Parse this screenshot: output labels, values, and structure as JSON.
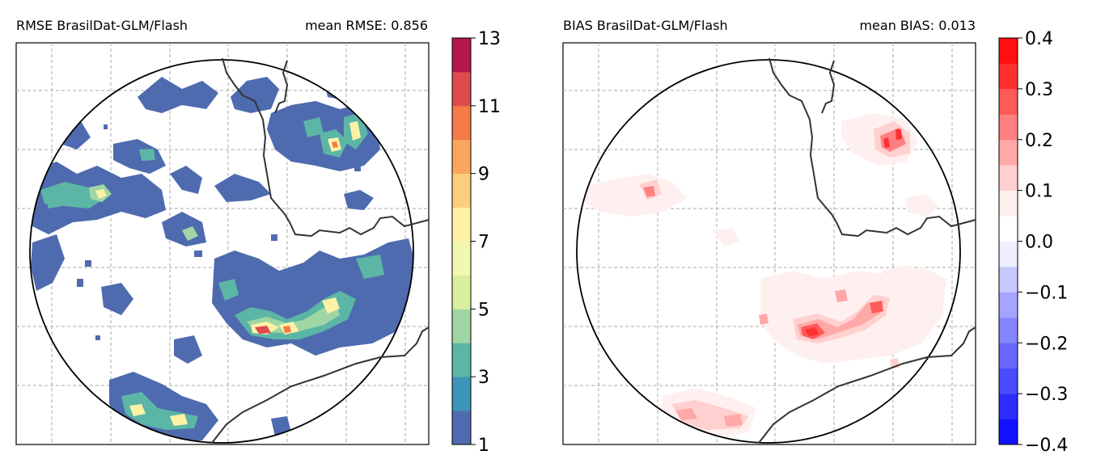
{
  "chart_data": [
    {
      "type": "heatmap",
      "title_left": "RMSE BrasilDat-GLM/Flash",
      "title_right": "mean RMSE: 0.856",
      "colorbar": {
        "ticks": [
          1,
          3,
          5,
          7,
          9,
          11,
          13
        ],
        "tick_labels": [
          "1",
          "3",
          "5",
          "7",
          "9",
          "11",
          "13"
        ],
        "range": [
          1,
          13
        ],
        "levels": [
          {
            "from": 1,
            "to": 2,
            "color": "#4f6baf"
          },
          {
            "from": 2,
            "to": 3,
            "color": "#3d93b8"
          },
          {
            "from": 3,
            "to": 4,
            "color": "#5cb6a6"
          },
          {
            "from": 4,
            "to": 5,
            "color": "#a0d6a4"
          },
          {
            "from": 5,
            "to": 6,
            "color": "#d9ef9b"
          },
          {
            "from": 6,
            "to": 7,
            "color": "#f2f8b1"
          },
          {
            "from": 7,
            "to": 8,
            "color": "#fff2a6"
          },
          {
            "from": 8,
            "to": 9,
            "color": "#fdce7c"
          },
          {
            "from": 9,
            "to": 10,
            "color": "#fba65e"
          },
          {
            "from": 10,
            "to": 11,
            "color": "#f47a48"
          },
          {
            "from": 11,
            "to": 12,
            "color": "#dd4b4c"
          },
          {
            "from": 12,
            "to": 13,
            "color": "#b5174b"
          }
        ]
      },
      "grid": true,
      "hotspots": [
        {
          "lon": 0.4,
          "lat": 0.52,
          "value": 12
        },
        {
          "lon": 0.86,
          "lat": 0.13,
          "value": 11
        },
        {
          "lon": 0.78,
          "lat": 0.25,
          "value": 8
        },
        {
          "lon": 0.82,
          "lat": 0.62,
          "value": 8
        },
        {
          "lon": 0.46,
          "lat": 0.15,
          "value": 7
        },
        {
          "lon": 0.42,
          "lat": 0.45,
          "value": 7
        },
        {
          "lon": 0.15,
          "lat": 0.9,
          "value": 6
        }
      ]
    },
    {
      "type": "heatmap",
      "title_left": "BIAS BrasilDat-GLM/Flash",
      "title_right": "mean BIAS: 0.013",
      "colorbar": {
        "ticks": [
          -0.4,
          -0.3,
          -0.2,
          -0.1,
          0.0,
          0.1,
          0.2,
          0.3,
          0.4
        ],
        "tick_labels": [
          "−0.4",
          "−0.3",
          "−0.2",
          "−0.1",
          "0.0",
          "0.1",
          "0.2",
          "0.3",
          "0.4"
        ],
        "range": [
          -0.4,
          0.4
        ],
        "levels": [
          {
            "from": -0.4,
            "to": -0.35,
            "color": "#1212ff"
          },
          {
            "from": -0.35,
            "to": -0.3,
            "color": "#2d2dff"
          },
          {
            "from": -0.3,
            "to": -0.25,
            "color": "#4a4aff"
          },
          {
            "from": -0.25,
            "to": -0.2,
            "color": "#6767ff"
          },
          {
            "from": -0.2,
            "to": -0.15,
            "color": "#8585ff"
          },
          {
            "from": -0.15,
            "to": -0.1,
            "color": "#a4a4ff"
          },
          {
            "from": -0.1,
            "to": -0.05,
            "color": "#c8c8ff"
          },
          {
            "from": -0.05,
            "to": 0.0,
            "color": "#eeeeff"
          },
          {
            "from": 0.0,
            "to": 0.05,
            "color": "#ffffff"
          },
          {
            "from": 0.05,
            "to": 0.1,
            "color": "#fff0f0"
          },
          {
            "from": 0.1,
            "to": 0.15,
            "color": "#ffd0d0"
          },
          {
            "from": 0.15,
            "to": 0.2,
            "color": "#ffa8a8"
          },
          {
            "from": 0.2,
            "to": 0.25,
            "color": "#ff8080"
          },
          {
            "from": 0.25,
            "to": 0.3,
            "color": "#ff5a5a"
          },
          {
            "from": 0.3,
            "to": 0.35,
            "color": "#ff3030"
          },
          {
            "from": 0.35,
            "to": 0.4,
            "color": "#ff0f0f"
          }
        ]
      },
      "grid": true,
      "hotspots": [
        {
          "lon": 0.63,
          "lat": 0.72,
          "value": 0.3
        },
        {
          "lon": 0.91,
          "lat": 0.22,
          "value": 0.3
        },
        {
          "lon": 0.84,
          "lat": 0.64,
          "value": 0.25
        },
        {
          "lon": 0.18,
          "lat": 0.37,
          "value": 0.2
        },
        {
          "lon": 0.26,
          "lat": 0.93,
          "value": 0.15
        },
        {
          "lon": 0.72,
          "lat": 0.63,
          "value": 0.15
        }
      ]
    }
  ]
}
